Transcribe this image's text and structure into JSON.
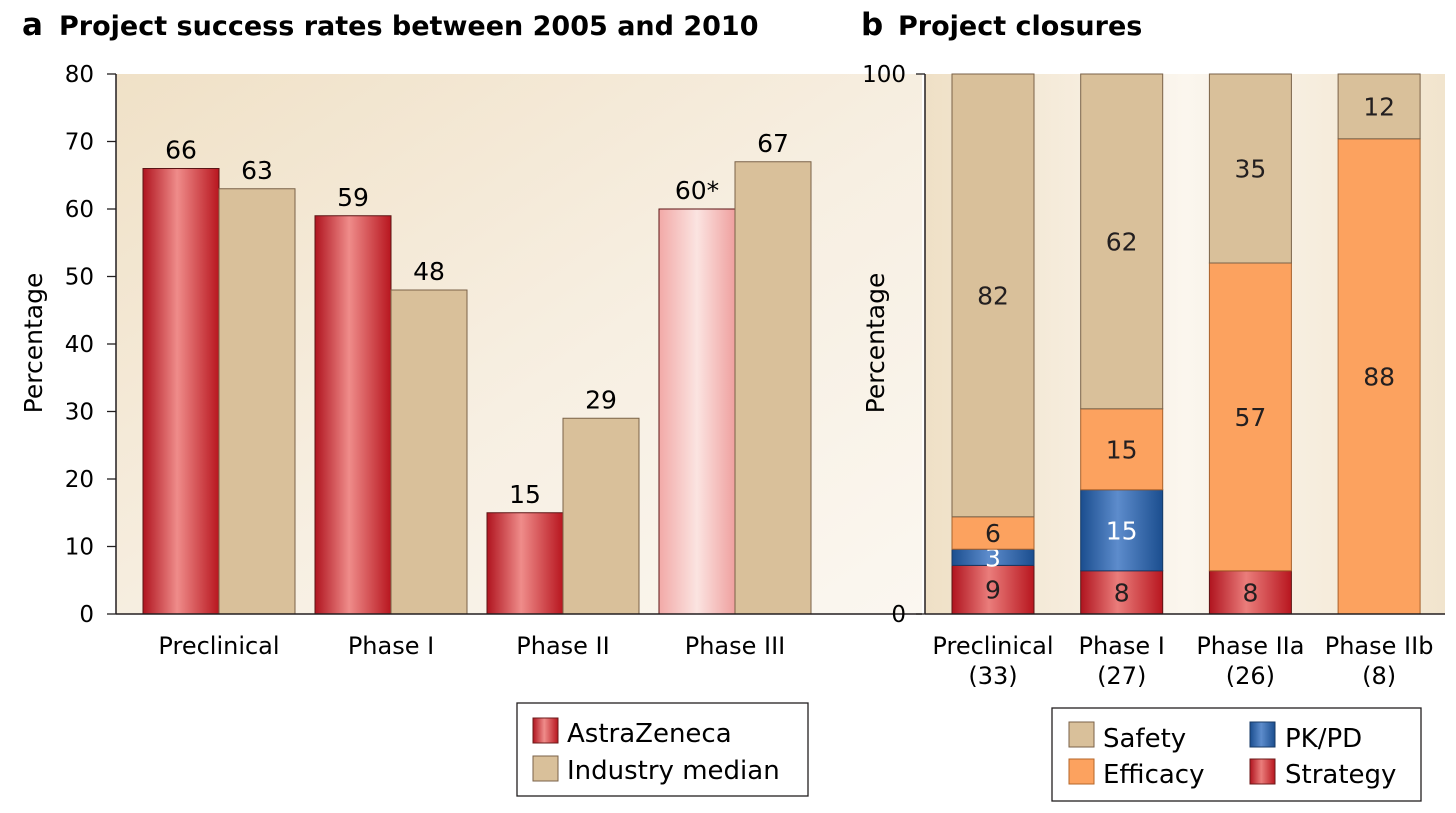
{
  "colors": {
    "astrazeneca": "#c8202e",
    "industry": "#d9c09a",
    "industry_stroke": "#7a6248",
    "safety": "#d9c09a",
    "efficacy": "#fca25f",
    "pkpd": "#2a5c9c",
    "strategy": "#c8202e",
    "background": "#f5ead8"
  },
  "chart_data": [
    {
      "panel_letter": "a",
      "title": "Project success rates between 2005 and 2010",
      "type": "bar",
      "ylabel": "Percentage",
      "ylim": [
        0,
        80
      ],
      "yticks": [
        0,
        10,
        20,
        30,
        40,
        50,
        60,
        70,
        80
      ],
      "categories": [
        "Preclinical",
        "Phase I",
        "Phase II",
        "Phase III"
      ],
      "series": [
        {
          "name": "AstraZeneca",
          "values": [
            66,
            59,
            15,
            60
          ],
          "labels": [
            "66",
            "59",
            "15",
            "60*"
          ]
        },
        {
          "name": "Industry median",
          "values": [
            63,
            48,
            29,
            67
          ],
          "labels": [
            "63",
            "48",
            "29",
            "67"
          ]
        }
      ],
      "legend": [
        "AstraZeneca",
        "Industry median"
      ],
      "legend_position": "bottom-right"
    },
    {
      "panel_letter": "b",
      "title": "Project closures",
      "type": "bar",
      "stacked": true,
      "ylabel": "Percentage",
      "ylim": [
        0,
        100
      ],
      "yticks": [
        0,
        100
      ],
      "categories": [
        "Preclinical",
        "Phase I",
        "Phase IIa",
        "Phase IIb"
      ],
      "category_counts": [
        "(33)",
        "(27)",
        "(26)",
        "(8)"
      ],
      "series": [
        {
          "name": "Strategy",
          "values": [
            9,
            8,
            8,
            0
          ]
        },
        {
          "name": "PK/PD",
          "values": [
            3,
            15,
            0,
            0
          ]
        },
        {
          "name": "Efficacy",
          "values": [
            6,
            15,
            57,
            88
          ]
        },
        {
          "name": "Safety",
          "values": [
            82,
            62,
            35,
            12
          ]
        }
      ],
      "legend": [
        "Safety",
        "PK/PD",
        "Efficacy",
        "Strategy"
      ],
      "legend_position": "bottom"
    }
  ]
}
